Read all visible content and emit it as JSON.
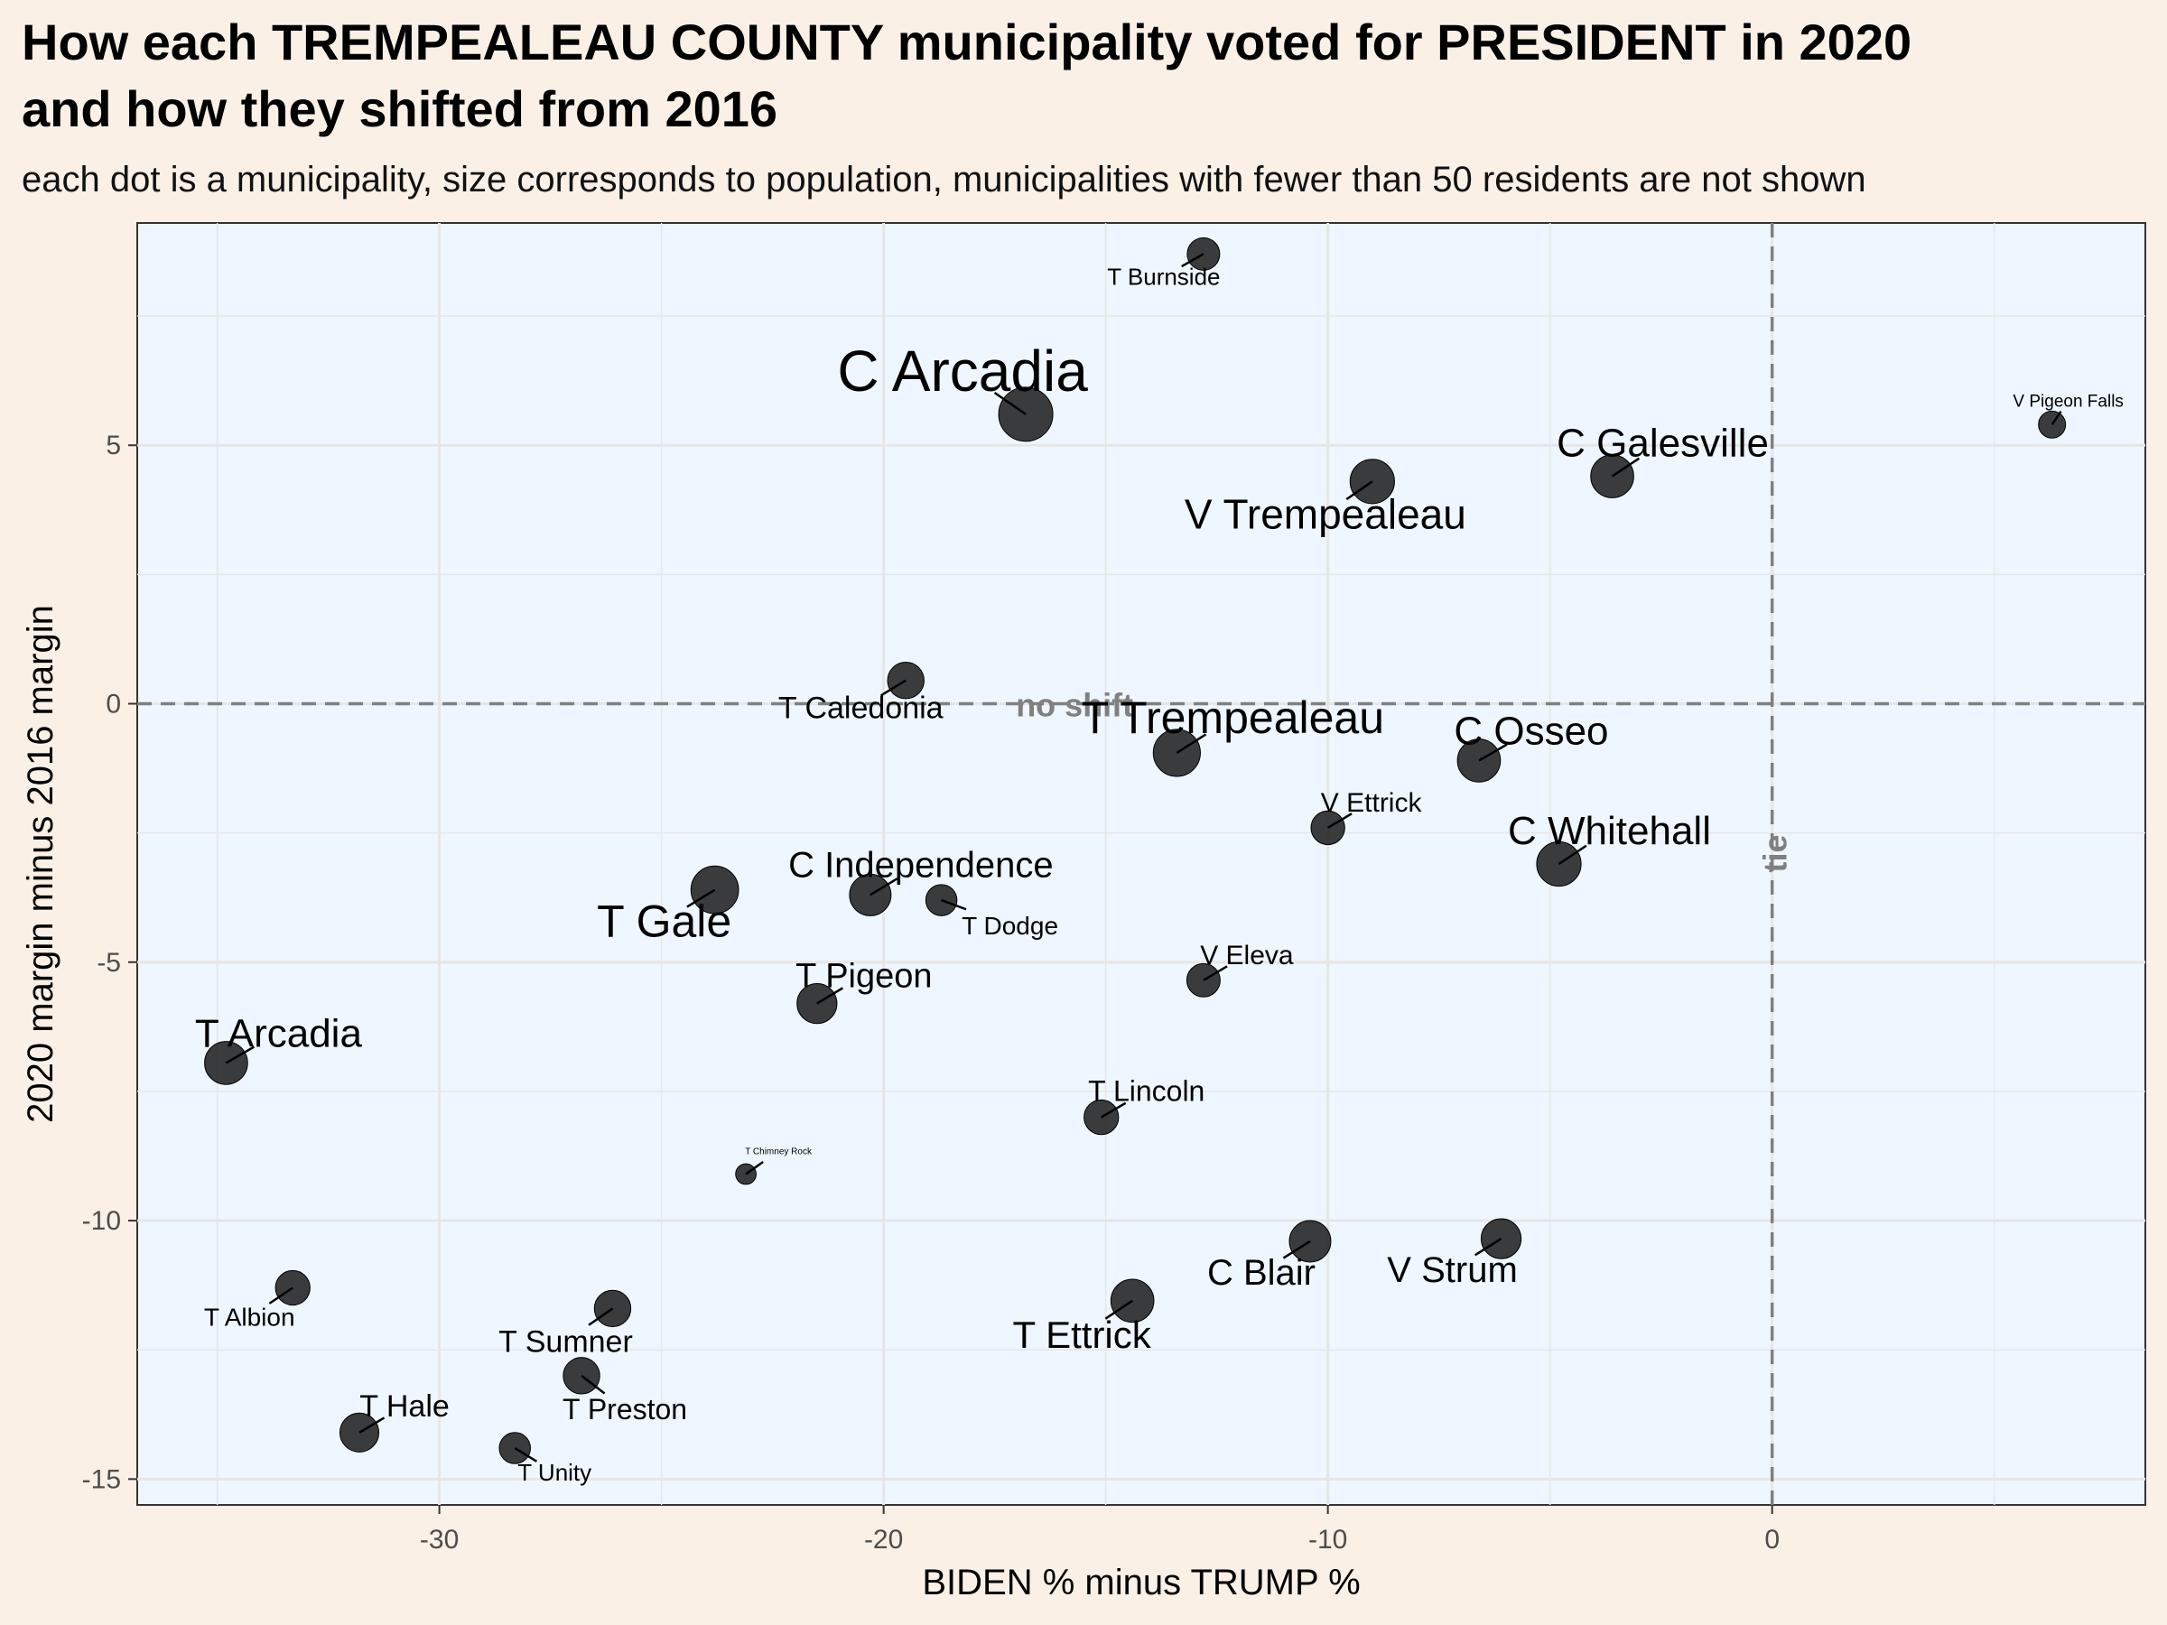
{
  "chart_data": {
    "type": "scatter",
    "title": "How each TREMPEALEAU COUNTY municipality voted for PRESIDENT in 2020",
    "title_line2": "and how they shifted from 2016",
    "subtitle": "each dot is a municipality, size corresponds to population, municipalities with fewer than 50 residents are not shown",
    "xlabel": "BIDEN % minus TRUMP %",
    "ylabel": "2020 margin minus 2016 margin",
    "xlim": [
      -36.8,
      8.4
    ],
    "ylim": [
      -15.5,
      9.3
    ],
    "x_ticks": [
      -30,
      -20,
      -10,
      0
    ],
    "x_tick_labels": [
      "-30",
      "-20",
      "-10",
      "0"
    ],
    "y_ticks": [
      -15,
      -10,
      -5,
      0,
      5
    ],
    "y_tick_labels": [
      "-15",
      "-10",
      "-5",
      "0",
      "5"
    ],
    "grid": true,
    "reference_lines": [
      {
        "axis": "y",
        "value": 0,
        "label": "no shift"
      },
      {
        "axis": "x",
        "value": 0,
        "label": "tie"
      }
    ],
    "colors": {
      "background": "#faf0e6",
      "panel": "#eef7ff",
      "point": "#1a1a1a",
      "reference": "#808080",
      "grid": "#e6e6e6"
    },
    "points": [
      {
        "name": "T Burnside",
        "x": -12.8,
        "y": 8.7,
        "size": 0.25
      },
      {
        "name": "C Arcadia",
        "x": -16.8,
        "y": 5.6,
        "size": 1.0
      },
      {
        "name": "V Pigeon Falls",
        "x": 6.3,
        "y": 5.4,
        "size": 0.14
      },
      {
        "name": "C Galesville",
        "x": -3.6,
        "y": 4.4,
        "size": 0.55
      },
      {
        "name": "V Trempealeau",
        "x": -9.0,
        "y": 4.3,
        "size": 0.6
      },
      {
        "name": "T Caledonia",
        "x": -19.5,
        "y": 0.45,
        "size": 0.35
      },
      {
        "name": "T Trempealeau",
        "x": -13.4,
        "y": -0.95,
        "size": 0.7
      },
      {
        "name": "C Osseo",
        "x": -6.6,
        "y": -1.1,
        "size": 0.55
      },
      {
        "name": "V Ettrick",
        "x": -10.0,
        "y": -2.4,
        "size": 0.28
      },
      {
        "name": "C Whitehall",
        "x": -4.8,
        "y": -3.1,
        "size": 0.6
      },
      {
        "name": "T Gale",
        "x": -23.8,
        "y": -3.6,
        "size": 0.72
      },
      {
        "name": "C Independence",
        "x": -20.3,
        "y": -3.7,
        "size": 0.5
      },
      {
        "name": "T Dodge",
        "x": -18.7,
        "y": -3.8,
        "size": 0.22
      },
      {
        "name": "V Eleva",
        "x": -12.8,
        "y": -5.35,
        "size": 0.27
      },
      {
        "name": "T Pigeon",
        "x": -21.5,
        "y": -5.8,
        "size": 0.45
      },
      {
        "name": "T Arcadia",
        "x": -34.8,
        "y": -6.95,
        "size": 0.55
      },
      {
        "name": "T Lincoln",
        "x": -15.1,
        "y": -8.0,
        "size": 0.3
      },
      {
        "name": "T Chimney Rock",
        "x": -23.1,
        "y": -9.1,
        "size": 0.05
      },
      {
        "name": "C Blair",
        "x": -10.4,
        "y": -10.4,
        "size": 0.5
      },
      {
        "name": "V Strum",
        "x": -6.1,
        "y": -10.35,
        "size": 0.45
      },
      {
        "name": "T Albion",
        "x": -33.3,
        "y": -11.3,
        "size": 0.3
      },
      {
        "name": "T Sumner",
        "x": -26.1,
        "y": -11.7,
        "size": 0.35
      },
      {
        "name": "T Ettrick",
        "x": -14.4,
        "y": -11.55,
        "size": 0.55
      },
      {
        "name": "T Preston",
        "x": -26.8,
        "y": -13.0,
        "size": 0.35
      },
      {
        "name": "T Hale",
        "x": -31.8,
        "y": -14.1,
        "size": 0.42
      },
      {
        "name": "T Unity",
        "x": -28.3,
        "y": -14.4,
        "size": 0.22
      }
    ]
  }
}
